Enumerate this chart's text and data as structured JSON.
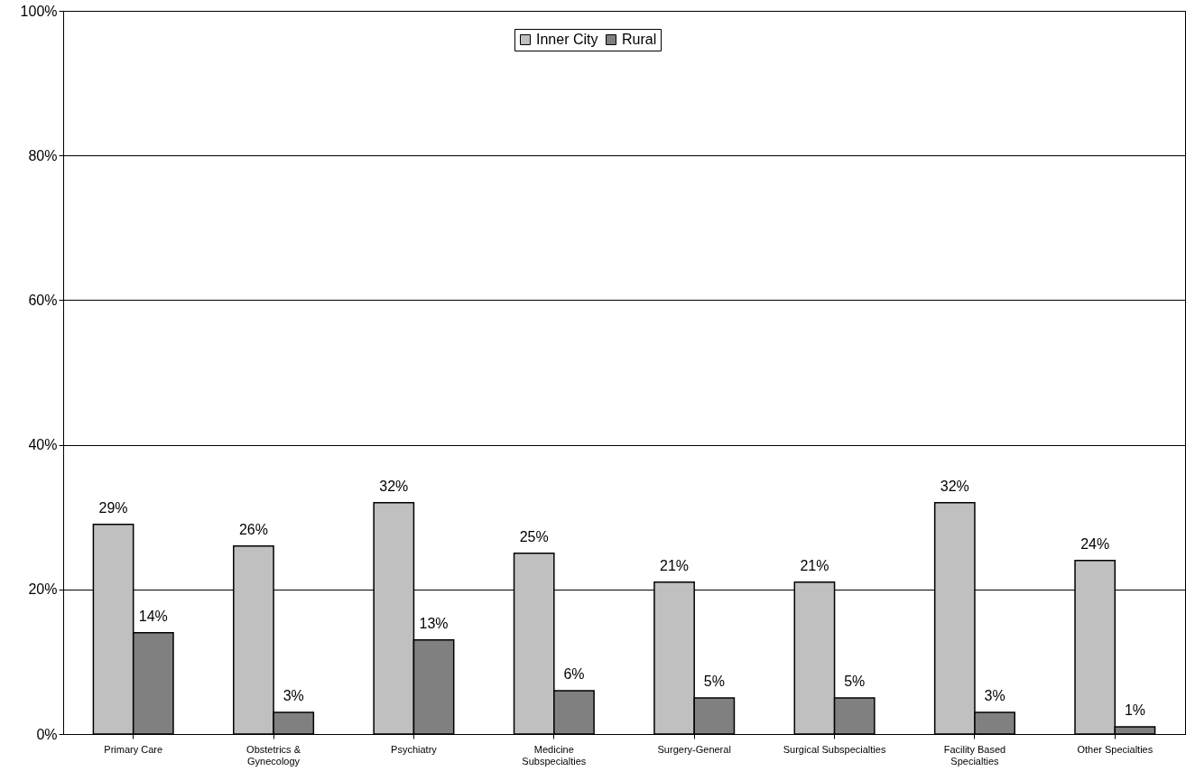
{
  "chart_data": {
    "type": "bar",
    "categories": [
      "Primary Care",
      "Obstetrics &\nGynecology",
      "Psychiatry",
      "Medicine\nSubspecialties",
      "Surgery-General",
      "Surgical Subspecialties",
      "Facility Based\nSpecialties",
      "Other Specialties"
    ],
    "series": [
      {
        "name": "Inner City",
        "color": "#c0c0c0",
        "values": [
          29,
          26,
          32,
          25,
          21,
          21,
          32,
          24
        ],
        "value_labels": [
          "29%",
          "26%",
          "32%",
          "25%",
          "21%",
          "21%",
          "32%",
          "24%"
        ]
      },
      {
        "name": "Rural",
        "color": "#808080",
        "values": [
          14,
          3,
          13,
          6,
          5,
          5,
          3,
          1
        ],
        "value_labels": [
          "14%",
          "3%",
          "13%",
          "6%",
          "5%",
          "5%",
          "3%",
          "1%"
        ]
      }
    ],
    "ylim": [
      0,
      100
    ],
    "yticks": [
      {
        "value": 0,
        "label": "0%"
      },
      {
        "value": 20,
        "label": "20%"
      },
      {
        "value": 40,
        "label": "40%"
      },
      {
        "value": 60,
        "label": "60%"
      },
      {
        "value": 80,
        "label": "80%"
      },
      {
        "value": 100,
        "label": "100%"
      }
    ],
    "grid": "y",
    "legend": "top"
  }
}
